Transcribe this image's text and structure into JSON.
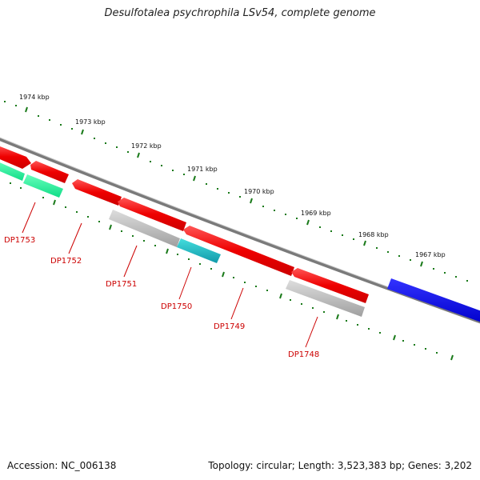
{
  "title": "Desulfotalea psychrophila LSv54, complete genome",
  "footer": {
    "accession": "Accession: NC_006138",
    "summary": "Topology: circular; Length: 3,523,383 bp; Genes: 3,202"
  },
  "colors": {
    "backbone": "#808080",
    "tick": "#1a7a1a",
    "label": "#cc0000",
    "gene_red": "#ff0000",
    "gene_green": "#22ee99",
    "gene_gray": "#bbbbbb",
    "gene_cyan": "#22bbcc",
    "gene_blue": "#0000ee"
  },
  "kbp_ticks": [
    "1974 kbp",
    "1973 kbp",
    "1972 kbp",
    "1971 kbp",
    "1970 kbp",
    "1969 kbp",
    "1968 kbp",
    "1967 kbp"
  ],
  "gene_labels": [
    "DP1753",
    "DP1752",
    "DP1751",
    "DP1750",
    "DP1749",
    "DP1748"
  ]
}
